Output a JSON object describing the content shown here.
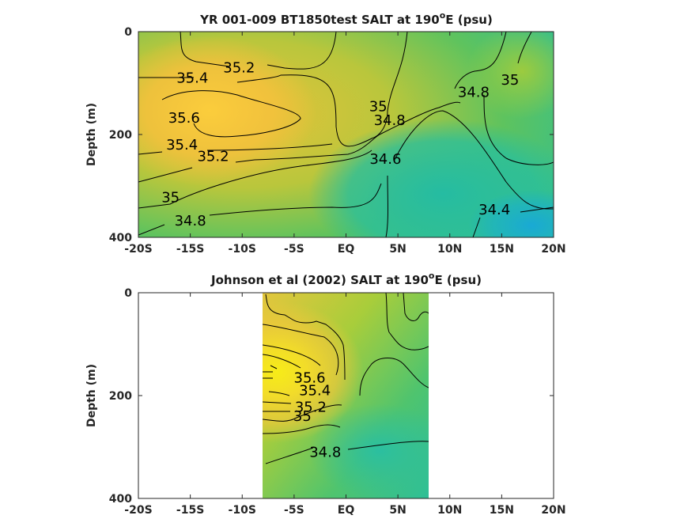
{
  "colors": {
    "axis": "#262626",
    "contour": "#000000",
    "salt_high": "#f2ec18",
    "salt_orange": "#f1c53a",
    "salt_mid": "#a9cd3a",
    "salt_green": "#5ec35e",
    "salt_teal": "#27bd9f",
    "salt_low": "#1aa6d6"
  },
  "chart_data": [
    {
      "type": "heatmap",
      "title_main": "YR 001-009 BT1850test SALT at 190",
      "title_sup": "o",
      "title_end": "E (psu)",
      "ylabel": "Depth (m)",
      "xlim": [
        -20,
        20
      ],
      "ylim": [
        0,
        400
      ],
      "y_reversed": true,
      "x_ticks": [
        -20,
        -15,
        -10,
        -5,
        0,
        5,
        10,
        15,
        20
      ],
      "x_tick_labels": [
        "-20S",
        "-15S",
        "-10S",
        "-5S",
        "EQ",
        "5N",
        "10N",
        "15N",
        "20N"
      ],
      "y_ticks": [
        0,
        200,
        400
      ],
      "y_tick_labels": [
        "0",
        "200",
        "400"
      ],
      "contour_labels": [
        {
          "text": "35.2",
          "x": -10.3,
          "y": 70
        },
        {
          "text": "35.4",
          "x": -14.8,
          "y": 90
        },
        {
          "text": "35.6",
          "x": -15.6,
          "y": 168
        },
        {
          "text": "35.4",
          "x": -15.8,
          "y": 220
        },
        {
          "text": "35.2",
          "x": -12.8,
          "y": 242
        },
        {
          "text": "35",
          "x": -16.9,
          "y": 322
        },
        {
          "text": "34.8",
          "x": -15.0,
          "y": 368
        },
        {
          "text": "35",
          "x": 3.1,
          "y": 145
        },
        {
          "text": "34.8",
          "x": 4.2,
          "y": 172
        },
        {
          "text": "34.6",
          "x": 3.8,
          "y": 248
        },
        {
          "text": "34.8",
          "x": 12.3,
          "y": 118
        },
        {
          "text": "35",
          "x": 15.8,
          "y": 94
        },
        {
          "text": "34.4",
          "x": 14.3,
          "y": 346
        }
      ]
    },
    {
      "type": "heatmap",
      "title_main": "Johnson et al (2002) SALT at 190",
      "title_sup": "o",
      "title_end": "E (psu)",
      "ylabel": "Depth (m)",
      "xlim": [
        -20,
        20
      ],
      "ylim": [
        0,
        400
      ],
      "y_reversed": true,
      "data_x_range": [
        -8,
        8
      ],
      "x_ticks": [
        -20,
        -15,
        -10,
        -5,
        0,
        5,
        10,
        15,
        20
      ],
      "x_tick_labels": [
        "-20S",
        "-15S",
        "-10S",
        "-5S",
        "EQ",
        "5N",
        "10N",
        "15N",
        "20N"
      ],
      "y_ticks": [
        0,
        200,
        400
      ],
      "y_tick_labels": [
        "0",
        "200",
        "400"
      ],
      "contour_labels": [
        {
          "text": "35.6",
          "x": -3.5,
          "y": 165
        },
        {
          "text": "35.4",
          "x": -3.0,
          "y": 190
        },
        {
          "text": "35.2",
          "x": -3.4,
          "y": 222
        },
        {
          "text": "35",
          "x": -4.2,
          "y": 240
        },
        {
          "text": "34.8",
          "x": -2.0,
          "y": 310
        }
      ]
    }
  ]
}
